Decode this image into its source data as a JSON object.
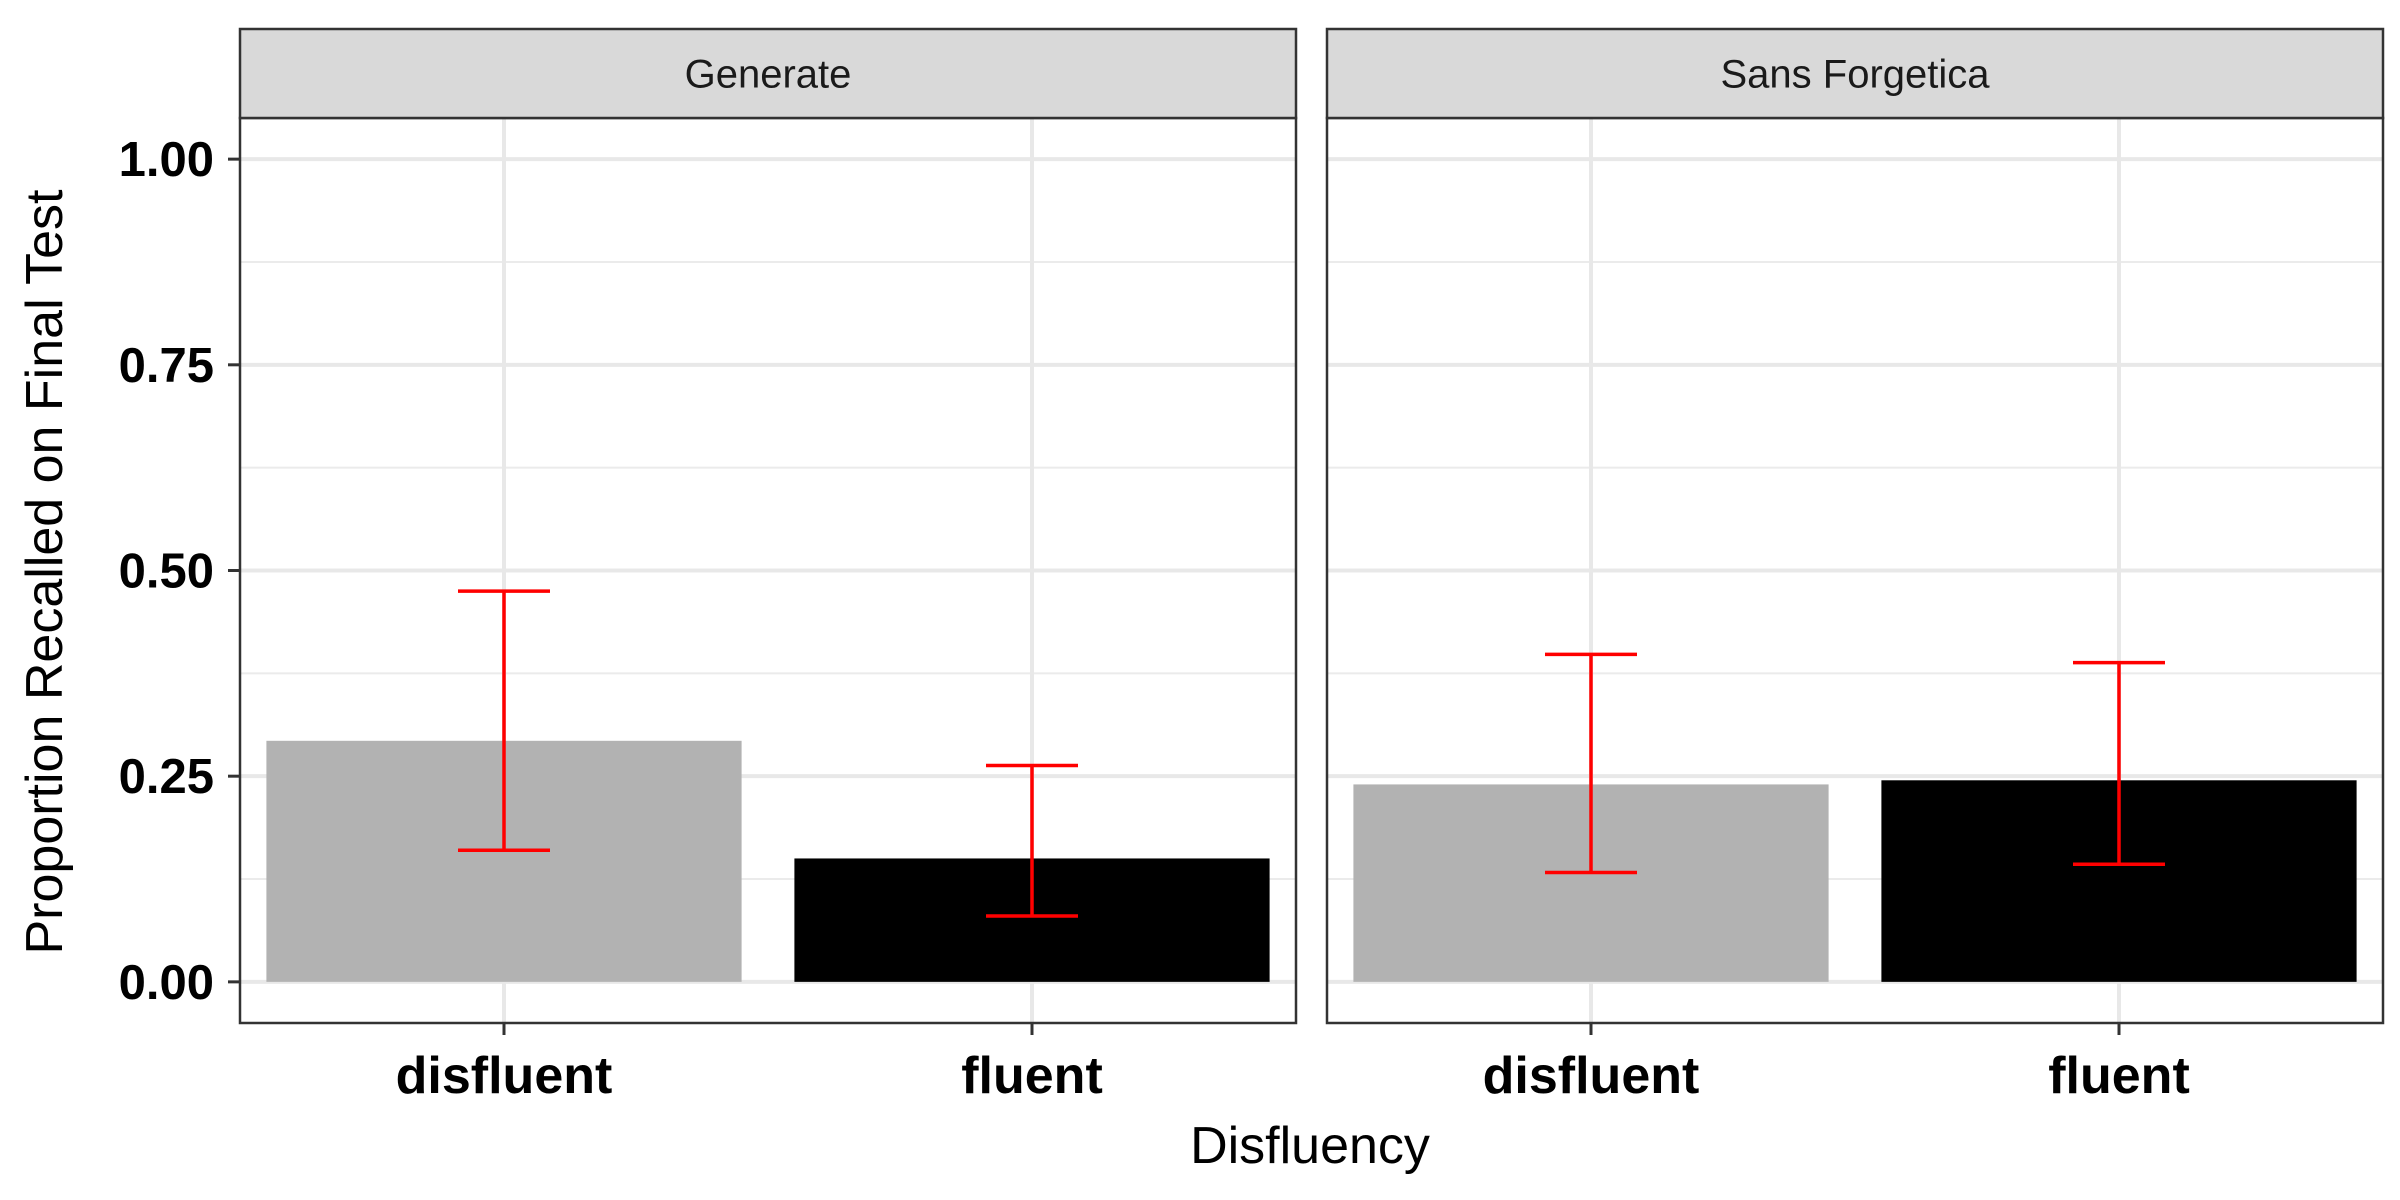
{
  "chart_data": {
    "type": "bar",
    "panels": [
      {
        "title": "Generate",
        "categories": [
          "disfluent",
          "fluent"
        ],
        "values": [
          0.293,
          0.15
        ],
        "error_low": [
          0.16,
          0.08
        ],
        "error_high": [
          0.475,
          0.263
        ]
      },
      {
        "title": "Sans Forgetica",
        "categories": [
          "disfluent",
          "fluent"
        ],
        "values": [
          0.24,
          0.245
        ],
        "error_low": [
          0.133,
          0.143
        ],
        "error_high": [
          0.398,
          0.388
        ]
      }
    ],
    "bar_colors": {
      "disfluent": "#b2b2b2",
      "fluent": "#000000"
    },
    "error_bar_color": "#ff0000",
    "xlabel": "Disfluency",
    "ylabel": "Proportion Recalled on Final Test",
    "ylim": [
      -0.05,
      1.05
    ],
    "yticks": [
      0,
      0.25,
      0.5,
      0.75,
      1.0
    ],
    "ytick_labels": [
      "0.00",
      "0.25",
      "0.50",
      "0.75",
      "1.00"
    ],
    "grid": true,
    "legend": "none"
  }
}
